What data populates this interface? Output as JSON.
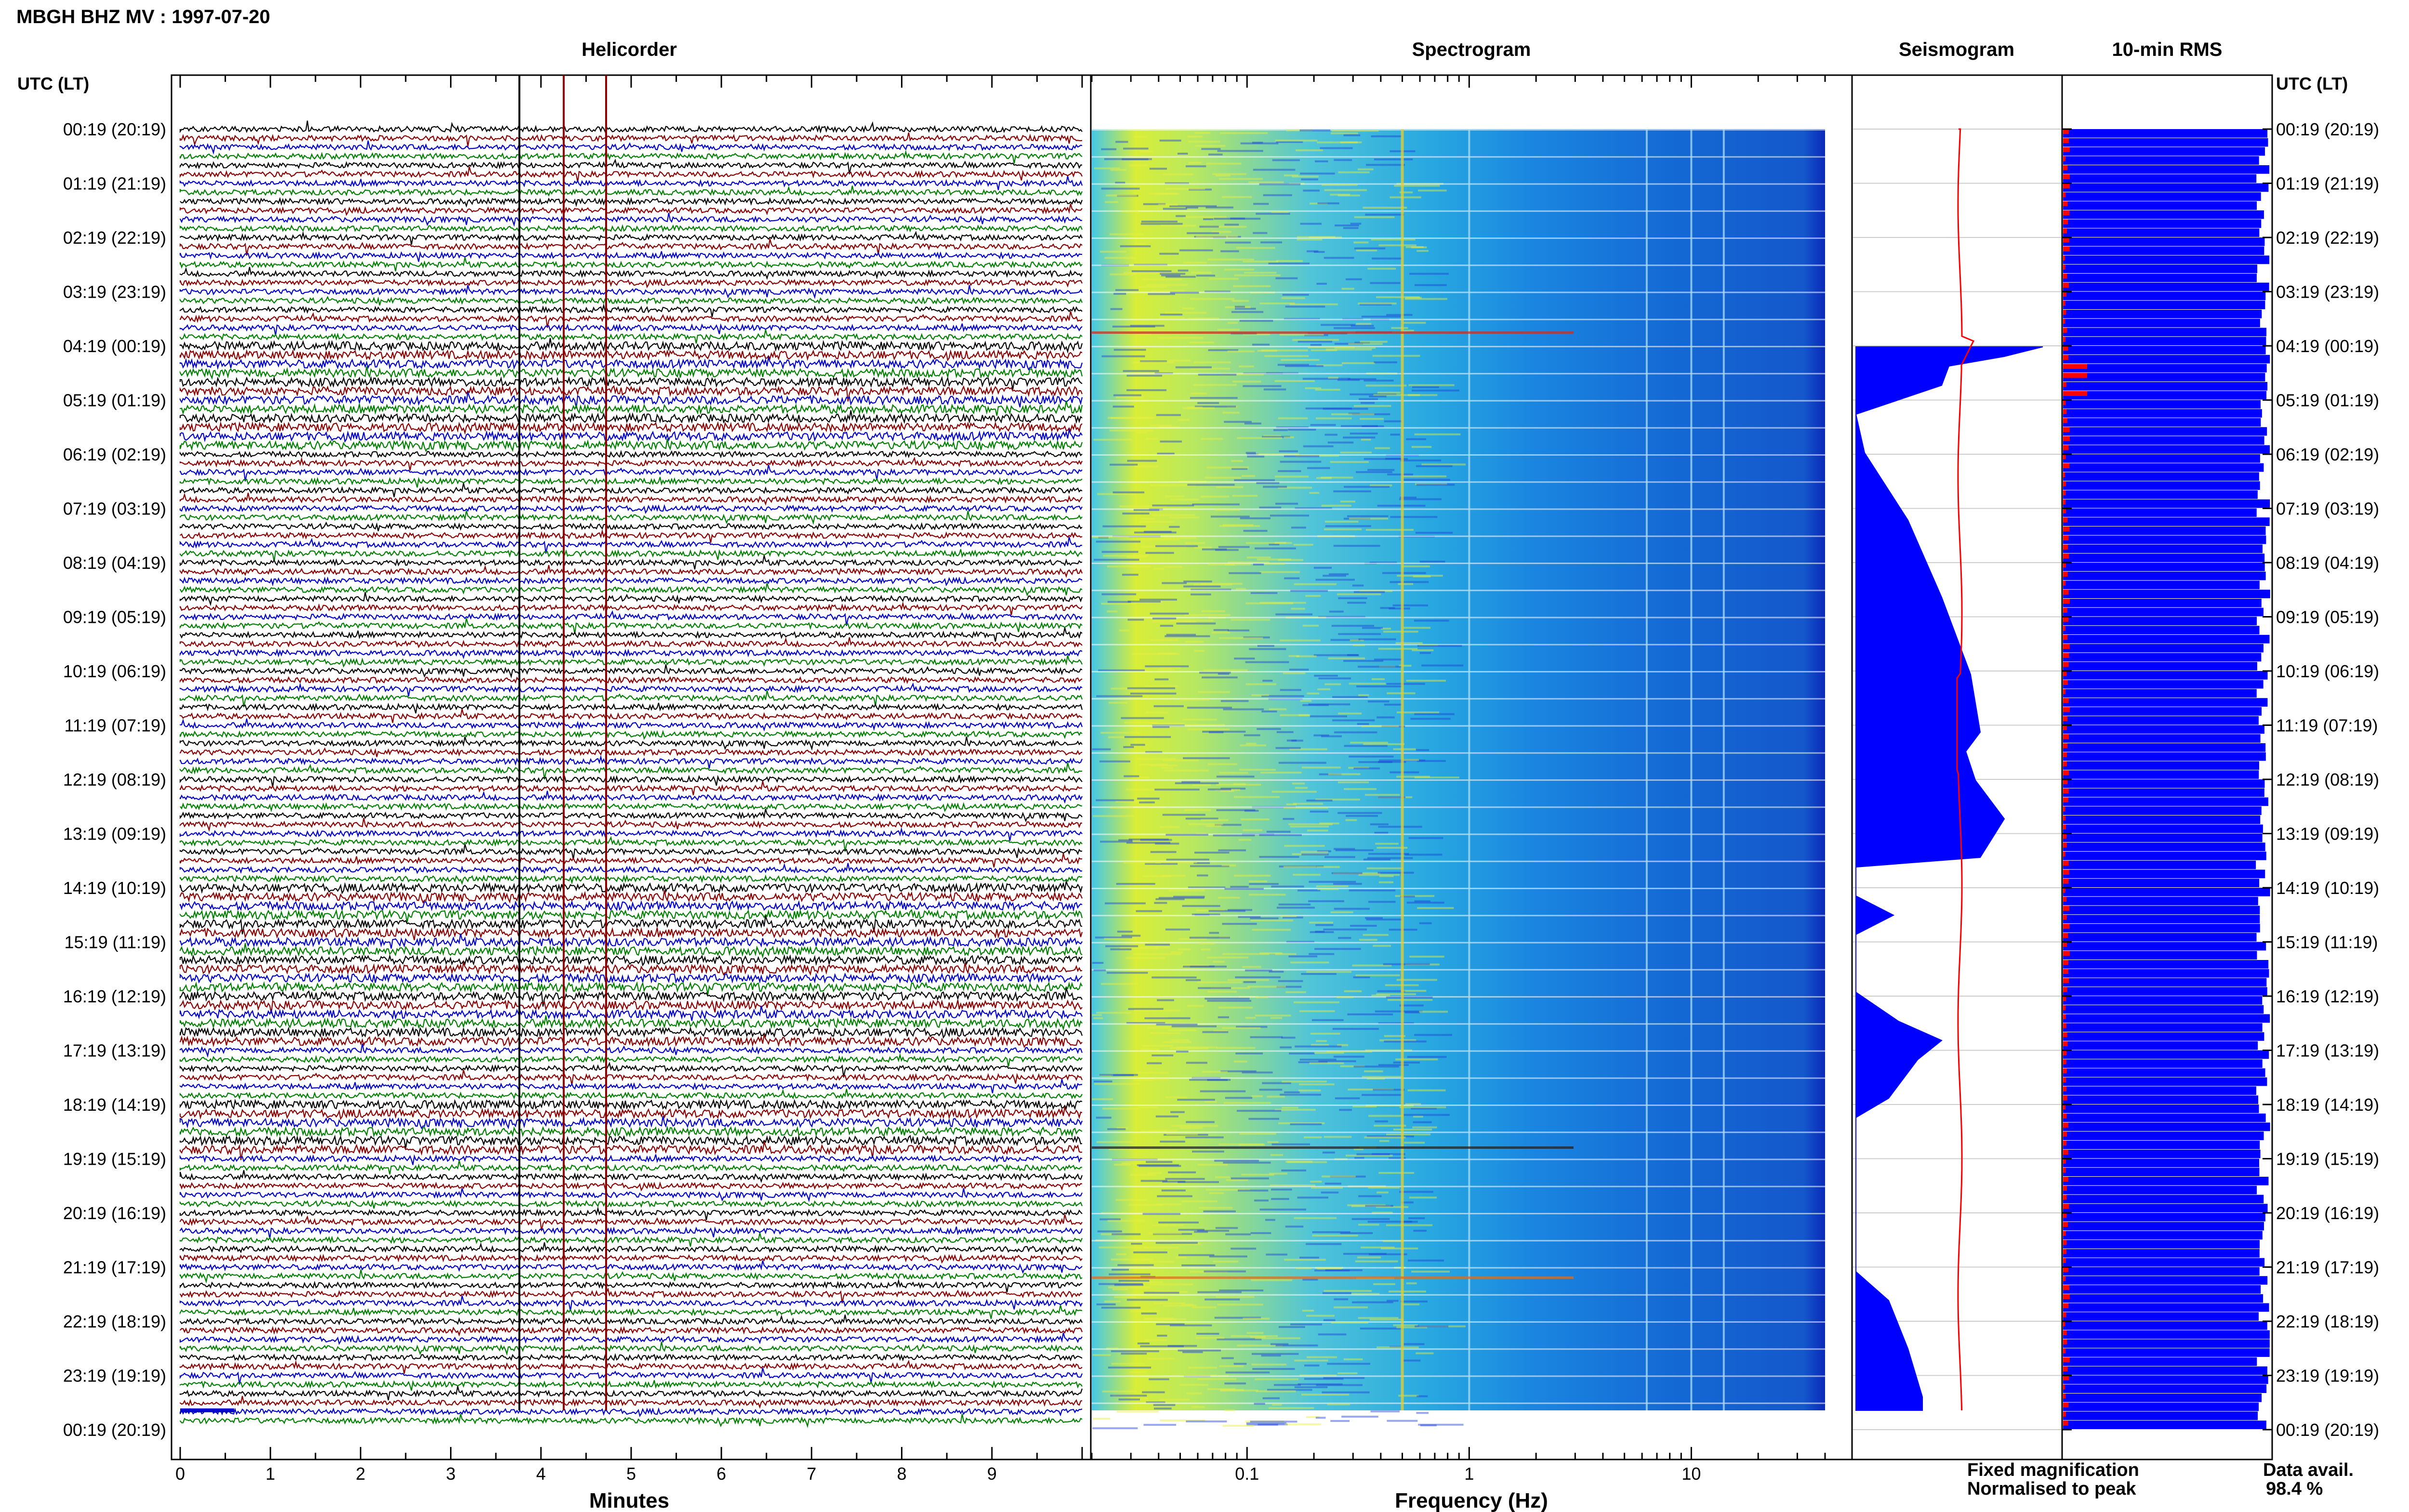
{
  "chart_data": {
    "type": "composite",
    "title": "MBGH BHZ MV : 1997-07-20",
    "row_axis": {
      "left_label": "UTC (LT)",
      "right_label": "UTC (LT)",
      "rows": [
        "00:19 (20:19)",
        "01:19 (21:19)",
        "02:19 (22:19)",
        "03:19 (23:19)",
        "04:19 (00:19)",
        "05:19 (01:19)",
        "06:19 (02:19)",
        "07:19 (03:19)",
        "08:19 (04:19)",
        "09:19 (05:19)",
        "10:19 (06:19)",
        "11:19 (07:19)",
        "12:19 (08:19)",
        "13:19 (09:19)",
        "14:19 (10:19)",
        "15:19 (11:19)",
        "16:19 (12:19)",
        "17:19 (13:19)",
        "18:19 (14:19)",
        "19:19 (15:19)",
        "20:19 (16:19)",
        "21:19 (17:19)",
        "22:19 (18:19)",
        "23:19 (19:19)",
        "00:19 (20:19)"
      ]
    },
    "panels": [
      {
        "type": "helicorder",
        "title": "Helicorder",
        "xlabel": "Minutes",
        "xlim": [
          0,
          10
        ],
        "xticks": [
          0,
          1,
          2,
          3,
          4,
          5,
          6,
          7,
          8,
          9
        ],
        "trace_colors": [
          "#000000",
          "#8b0000",
          "#0000cc",
          "#008000"
        ],
        "traces_per_hour": 6
      },
      {
        "type": "spectrogram",
        "title": "Spectrogram",
        "xlabel": "Frequency (Hz)",
        "xscale": "log",
        "xlim": [
          0.02,
          40
        ],
        "xticks": [
          0.1,
          1,
          10
        ],
        "xtick_labels": [
          "0.1",
          "1",
          "10"
        ]
      },
      {
        "type": "seismogram",
        "title": "Seismogram",
        "series": [
          {
            "name": "Fixed magnification",
            "color": "#0000ff"
          },
          {
            "name": "Normalised to peak",
            "color": "#ff0000"
          }
        ]
      },
      {
        "type": "bar",
        "orientation": "horizontal",
        "title": "10-min RMS",
        "colors": {
          "rms": "#0000ff",
          "peaks": "#ff0000"
        }
      }
    ],
    "legend": [
      {
        "label": "Fixed magnification",
        "color": "#0000ff"
      },
      {
        "label": "Normalised to peak",
        "color": "#ff0000"
      }
    ],
    "data_availability": {
      "label": "Data avail.",
      "value": "98.4 %"
    }
  }
}
